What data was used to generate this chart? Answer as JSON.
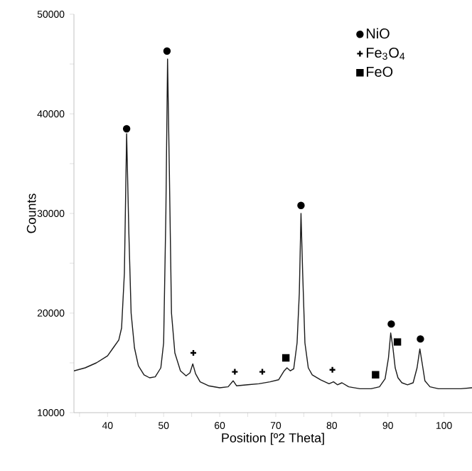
{
  "chart_data": {
    "type": "line",
    "xlabel": "Position [º2 Theta]",
    "ylabel": "Counts",
    "xlim": [
      34,
      105
    ],
    "ylim": [
      10000,
      50000
    ],
    "xticks": [
      {
        "value": 35,
        "label": null
      },
      40,
      {
        "value": 45,
        "label": null
      },
      50,
      {
        "value": 55,
        "label": null
      },
      60,
      {
        "value": 65,
        "label": null
      },
      70,
      {
        "value": 75,
        "label": null
      },
      80,
      {
        "value": 85,
        "label": null
      },
      90,
      {
        "value": 95,
        "label": null
      },
      100
    ],
    "yticks": [
      10000,
      {
        "value": 15000,
        "label": null
      },
      20000,
      {
        "value": 25000,
        "label": null
      },
      30000,
      {
        "value": 35000,
        "label": null
      },
      40000,
      {
        "value": 45000,
        "label": null
      },
      50000
    ],
    "grid": false,
    "legend": "top right",
    "series": [
      {
        "marker": "none",
        "color": "#1a1a1a",
        "x": [
          34,
          36,
          38,
          40,
          41,
          42,
          42.5,
          43,
          43.4,
          43.8,
          44.2,
          44.8,
          45.5,
          46.5,
          47.5,
          48.5,
          49.5,
          50,
          50.4,
          50.7,
          51,
          51.4,
          52,
          53,
          54,
          54.7,
          55.2,
          55.7,
          56.5,
          58,
          60,
          61.5,
          62.4,
          63,
          65,
          67,
          69,
          70.5,
          71.5,
          72,
          72.6,
          73.2,
          73.8,
          74.2,
          74.5,
          74.8,
          75.2,
          75.8,
          76.5,
          78,
          79.5,
          80.3,
          81,
          81.8,
          83,
          85,
          87,
          88.5,
          89.5,
          90.1,
          90.5,
          90.9,
          91.3,
          91.8,
          92.5,
          93.5,
          94.5,
          95.2,
          95.7,
          96.1,
          96.6,
          97.5,
          99,
          101,
          103,
          105
        ],
        "values": [
          14200,
          14500,
          15000,
          15700,
          16500,
          17300,
          18500,
          24000,
          38000,
          28000,
          20000,
          16500,
          14700,
          13800,
          13500,
          13600,
          14500,
          17000,
          30000,
          45500,
          35000,
          20000,
          16000,
          14200,
          13700,
          14000,
          14900,
          13900,
          13100,
          12700,
          12500,
          12600,
          13200,
          12700,
          12800,
          12900,
          13100,
          13300,
          14200,
          14500,
          14200,
          14400,
          17000,
          22000,
          30000,
          24000,
          17000,
          14500,
          13800,
          13300,
          12900,
          13100,
          12800,
          13000,
          12600,
          12400,
          12400,
          12600,
          13400,
          15500,
          18000,
          16500,
          14500,
          13500,
          13000,
          12800,
          13000,
          14500,
          16400,
          15000,
          13200,
          12600,
          12400,
          12400,
          12400,
          12500
        ]
      },
      {
        "type": "scatter",
        "name": "NiO",
        "marker": "circle",
        "color": "#000000",
        "x": [
          43.4,
          50.6,
          74.5,
          90.6,
          95.8
        ],
        "values": [
          38500,
          46300,
          30800,
          18900,
          17400
        ]
      },
      {
        "type": "scatter",
        "name": "Fe$_{3}$O$_{4}$",
        "marker": "cross",
        "color": "#000000",
        "x": [
          55.3,
          62.7,
          67.6,
          80.1
        ],
        "values": [
          16000,
          14100,
          14100,
          14300
        ]
      },
      {
        "type": "scatter",
        "name": "FeO",
        "marker": "square",
        "color": "#000000",
        "x": [
          71.8,
          87.8,
          91.7
        ],
        "values": [
          15500,
          13800,
          17100
        ]
      }
    ]
  }
}
